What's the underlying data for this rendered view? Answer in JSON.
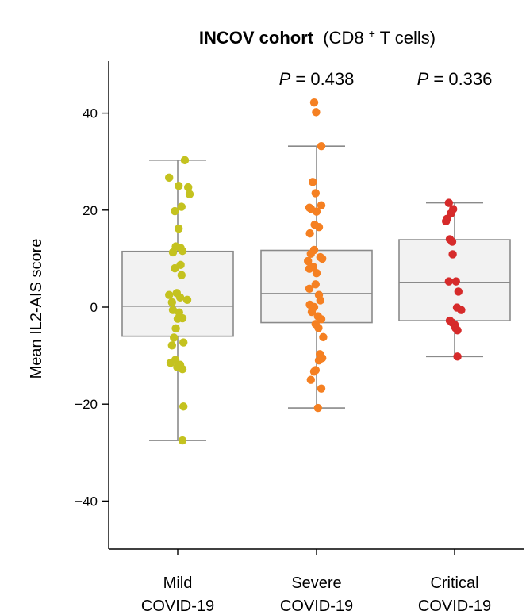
{
  "chart_data": {
    "type": "box-strip",
    "title_bold": "INCOV cohort",
    "title_rest": "(CD8",
    "title_sup": "+",
    "title_end": " T cells)",
    "ylabel": "Mean IL2-AIS score",
    "ylim": [
      -50,
      50
    ],
    "yticks": [
      -40,
      -20,
      0,
      20,
      40
    ],
    "ytick_labels": [
      "−40",
      "−20",
      "0",
      "20",
      "40"
    ],
    "groups": [
      {
        "label_line1": "Mild",
        "label_line2": "COVID-19",
        "color": "#c4c21f",
        "whisker_low": -27.5,
        "q1": -6,
        "median": 0.2,
        "q3": 11.5,
        "whisker_high": 30.3,
        "pvalue_prefix": "",
        "pvalue_value": "",
        "points": [
          [
            30.3,
            0.15
          ],
          [
            26.7,
            -0.18
          ],
          [
            25.0,
            0.02
          ],
          [
            24.7,
            0.22
          ],
          [
            23.3,
            0.25
          ],
          [
            20.7,
            0.08
          ],
          [
            19.8,
            -0.06
          ],
          [
            16.2,
            0.02
          ],
          [
            12.5,
            -0.04
          ],
          [
            12.2,
            0.06
          ],
          [
            11.6,
            0.1
          ],
          [
            11.3,
            -0.1
          ],
          [
            8.7,
            0.06
          ],
          [
            8.0,
            -0.06
          ],
          [
            6.6,
            0.08
          ],
          [
            2.9,
            -0.02
          ],
          [
            2.5,
            -0.18
          ],
          [
            2.0,
            0.05
          ],
          [
            1.5,
            0.2
          ],
          [
            1.0,
            -0.12
          ],
          [
            -0.6,
            -0.1
          ],
          [
            -1.1,
            0.03
          ],
          [
            -2.3,
            0.1
          ],
          [
            -2.4,
            0.0
          ],
          [
            -4.4,
            -0.04
          ],
          [
            -6.3,
            -0.08
          ],
          [
            -7.3,
            0.12
          ],
          [
            -7.9,
            -0.12
          ],
          [
            -10.9,
            -0.05
          ],
          [
            -11.5,
            -0.15
          ],
          [
            -11.9,
            0.05
          ],
          [
            -12.8,
            0.1
          ],
          [
            -12.4,
            -0.01
          ],
          [
            -20.5,
            0.12
          ],
          [
            -27.5,
            0.1
          ]
        ]
      },
      {
        "label_line1": "Severe",
        "label_line2": "COVID-19",
        "color": "#f58022",
        "whisker_low": -20.8,
        "q1": -3.2,
        "median": 2.8,
        "q3": 11.7,
        "whisker_high": 33.2,
        "pvalue_prefix": "P",
        "pvalue_value": " = 0.438",
        "points": [
          [
            42.2,
            -0.05
          ],
          [
            40.2,
            -0.01
          ],
          [
            33.2,
            0.1
          ],
          [
            25.8,
            -0.08
          ],
          [
            23.5,
            -0.02
          ],
          [
            21.0,
            0.1
          ],
          [
            20.3,
            -0.12
          ],
          [
            20.5,
            -0.15
          ],
          [
            19.7,
            0.0
          ],
          [
            17.0,
            -0.04
          ],
          [
            16.5,
            0.05
          ],
          [
            15.2,
            -0.14
          ],
          [
            11.8,
            -0.05
          ],
          [
            11.0,
            -0.12
          ],
          [
            10.3,
            0.08
          ],
          [
            10.0,
            0.12
          ],
          [
            9.5,
            -0.18
          ],
          [
            8.3,
            -0.07
          ],
          [
            7.9,
            -0.15
          ],
          [
            7.0,
            -0.0
          ],
          [
            4.7,
            -0.02
          ],
          [
            3.8,
            -0.15
          ],
          [
            2.5,
            0.05
          ],
          [
            1.4,
            0.08
          ],
          [
            0.5,
            -0.14
          ],
          [
            0.0,
            -0.05
          ],
          [
            -1.0,
            -0.1
          ],
          [
            -1.9,
            0.03
          ],
          [
            -2.5,
            0.1
          ],
          [
            -3.5,
            -0.02
          ],
          [
            -4.3,
            0.04
          ],
          [
            -6.2,
            0.14
          ],
          [
            -9.7,
            0.07
          ],
          [
            -10.5,
            0.12
          ],
          [
            -11.0,
            0.05
          ],
          [
            -13.0,
            -0.02
          ],
          [
            -13.3,
            -0.05
          ],
          [
            -15.0,
            -0.12
          ],
          [
            -16.8,
            0.1
          ],
          [
            -20.8,
            0.03
          ]
        ]
      },
      {
        "label_line1": "Critical",
        "label_line2": "COVID-19",
        "color": "#d62b2b",
        "whisker_low": -10.2,
        "q1": -2.8,
        "median": 5.1,
        "q3": 13.9,
        "whisker_high": 21.5,
        "pvalue_prefix": "P",
        "pvalue_value": " = 0.336",
        "points": [
          [
            21.5,
            -0.12
          ],
          [
            20.2,
            -0.03
          ],
          [
            19.3,
            -0.08
          ],
          [
            18.2,
            -0.16
          ],
          [
            17.7,
            -0.18
          ],
          [
            14.0,
            -0.1
          ],
          [
            13.5,
            -0.05
          ],
          [
            10.9,
            -0.04
          ],
          [
            5.3,
            -0.12
          ],
          [
            5.3,
            0.03
          ],
          [
            3.2,
            0.08
          ],
          [
            -0.1,
            0.05
          ],
          [
            -0.6,
            0.14
          ],
          [
            -2.8,
            -0.1
          ],
          [
            -3.2,
            -0.05
          ],
          [
            -3.6,
            0.0
          ],
          [
            -4.3,
            0.02
          ],
          [
            -4.8,
            0.06
          ],
          [
            -10.2,
            0.06
          ]
        ]
      }
    ]
  }
}
